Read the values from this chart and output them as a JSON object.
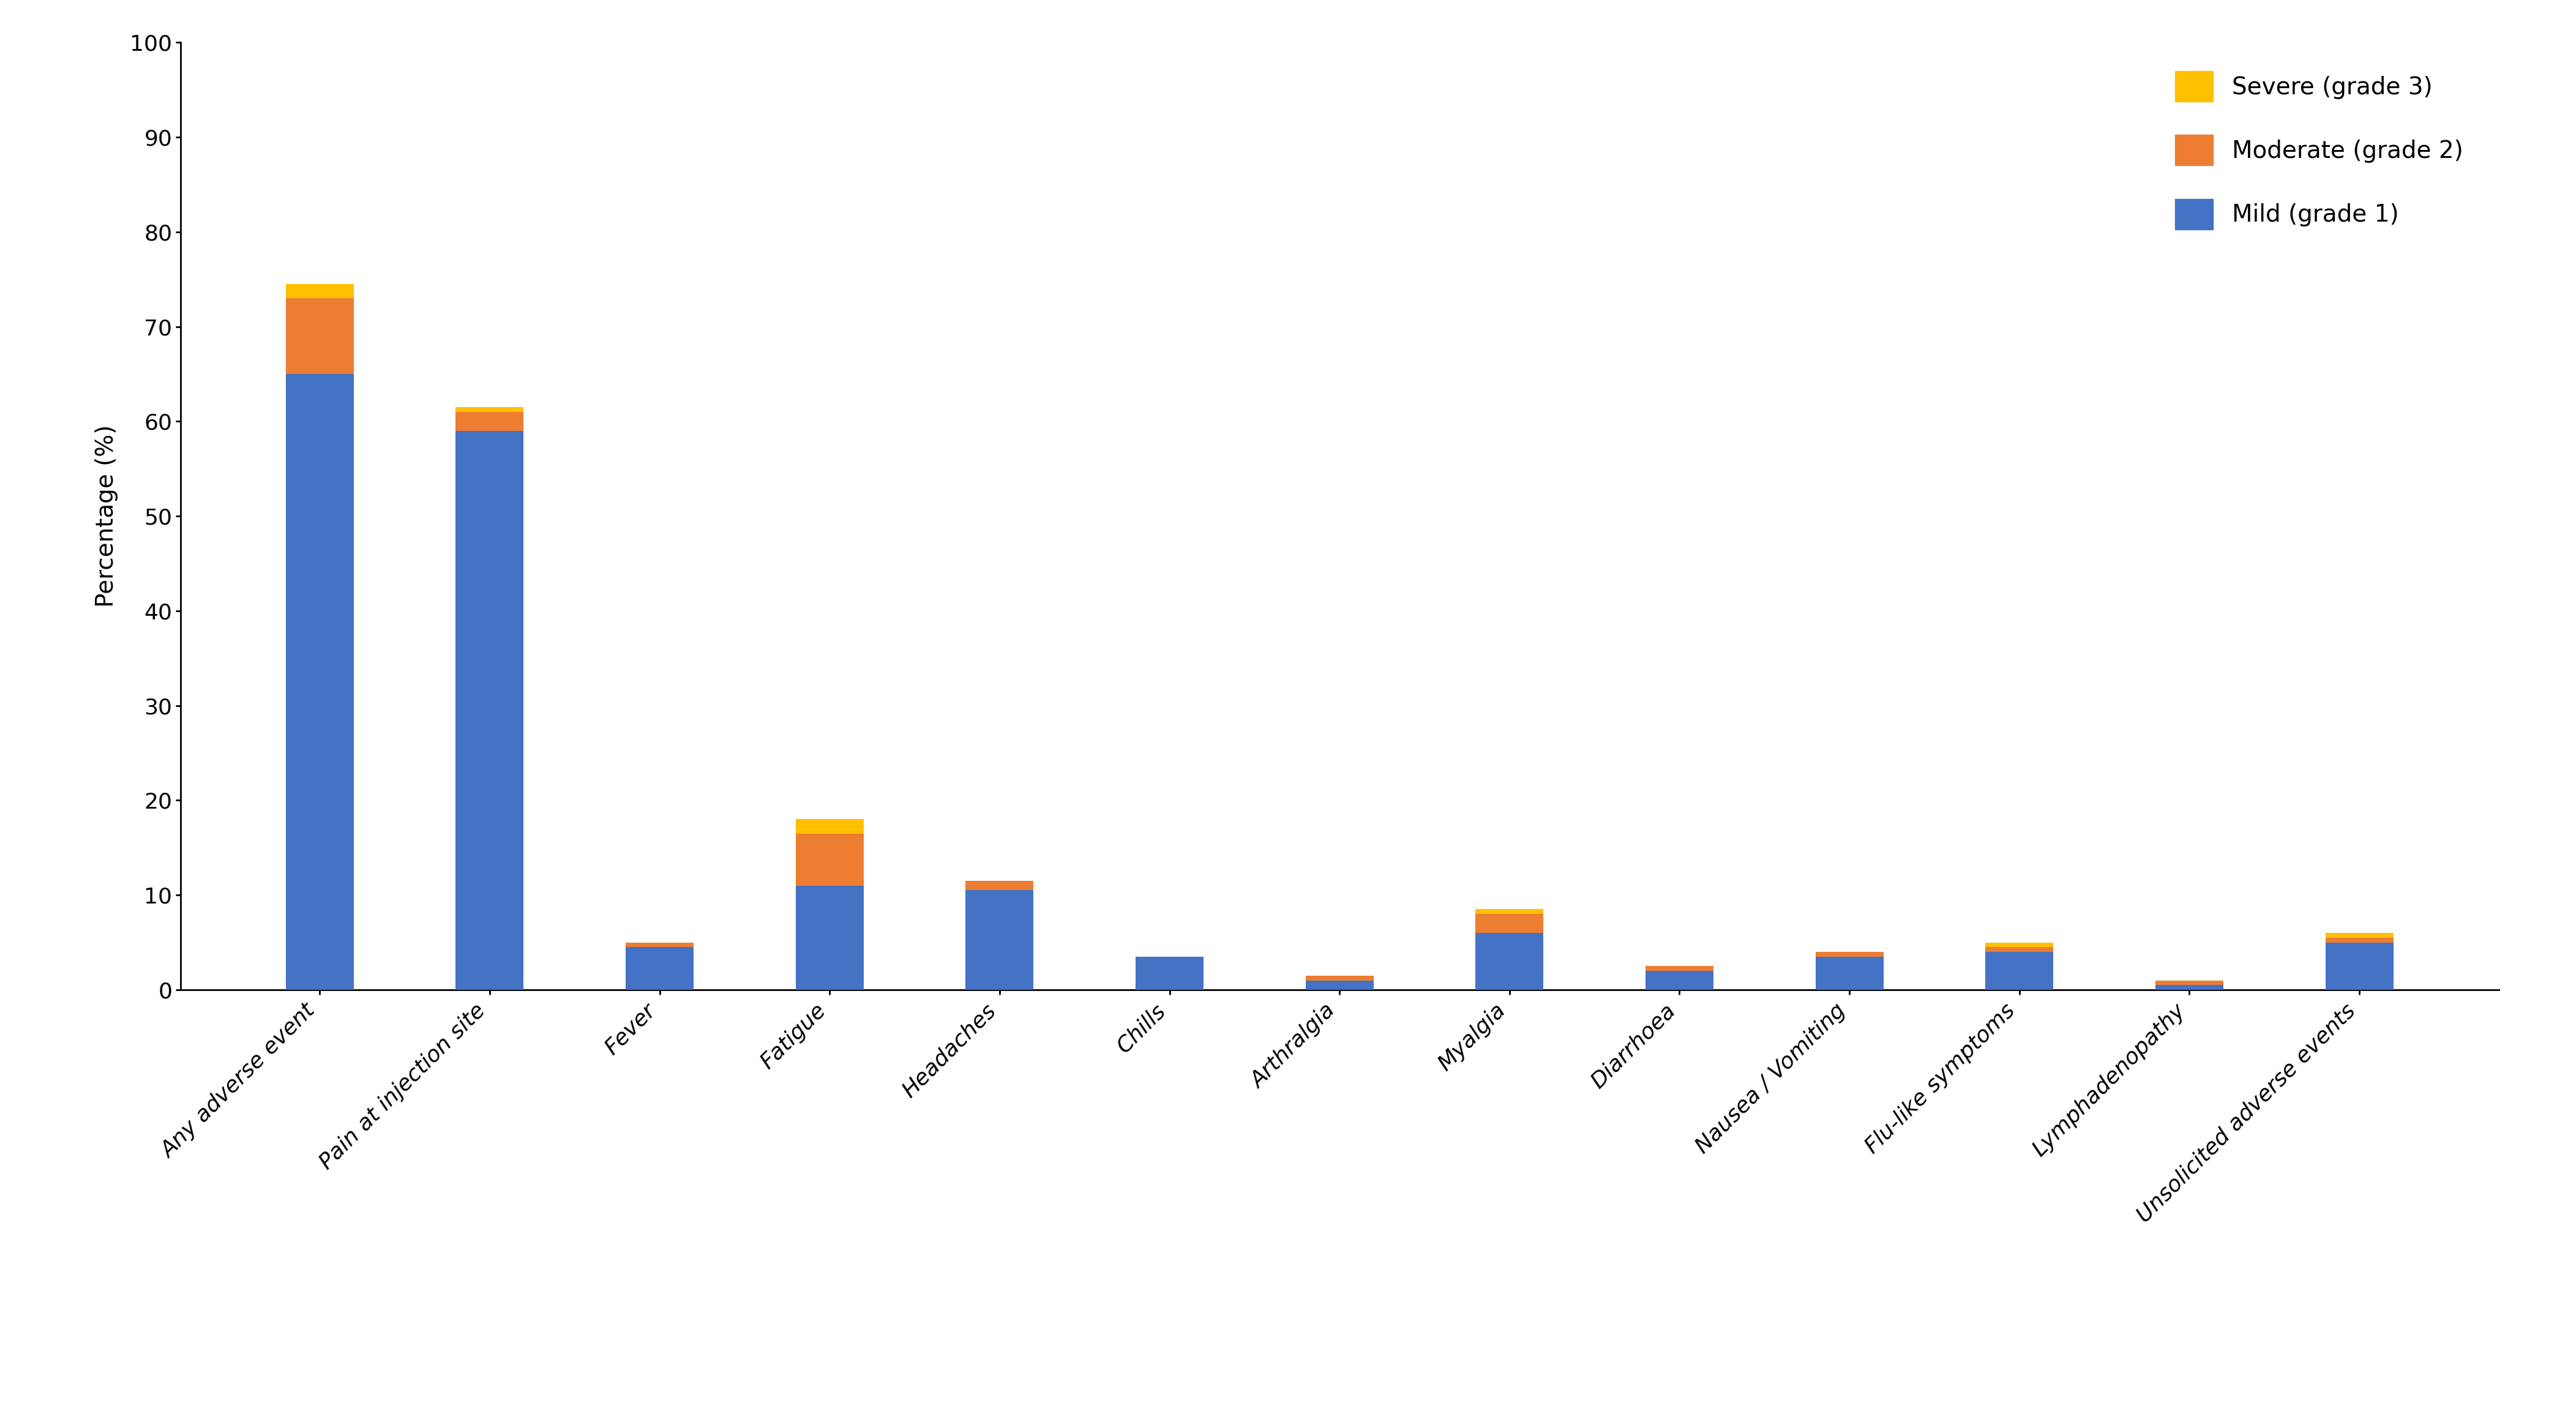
{
  "categories": [
    "Any adverse event",
    "Pain at injection site",
    "Fever",
    "Fatigue",
    "Headaches",
    "Chills",
    "Arthralgia",
    "Myalgia",
    "Diarrhoea",
    "Nausea / Vomiting",
    "Flu-like symptoms",
    "Lymphadenopathy",
    "Unsolicited adverse events"
  ],
  "mild": [
    65,
    59,
    4.5,
    11,
    10.5,
    3.5,
    1.0,
    6.0,
    2.0,
    3.5,
    4.0,
    0.5,
    5.0
  ],
  "moderate": [
    8.0,
    2.0,
    0.5,
    5.5,
    1.0,
    0.0,
    0.5,
    2.0,
    0.5,
    0.5,
    0.5,
    0.5,
    0.5
  ],
  "severe": [
    1.5,
    0.5,
    0.0,
    1.5,
    0.0,
    0.0,
    0.0,
    0.5,
    0.0,
    0.0,
    0.5,
    0.0,
    0.5
  ],
  "mild_color": "#4472C4",
  "moderate_color": "#ED7D31",
  "severe_color": "#FFC000",
  "ylabel": "Percentage (%)",
  "ylim": [
    0,
    100
  ],
  "yticks": [
    0,
    10,
    20,
    30,
    40,
    50,
    60,
    70,
    80,
    90,
    100
  ],
  "legend_labels": [
    "Severe (grade 3)",
    "Moderate (grade 2)",
    "Mild (grade 1)"
  ],
  "background_color": "#FFFFFF",
  "bar_width": 0.4,
  "axis_fontsize": 28,
  "tick_fontsize": 26,
  "legend_fontsize": 28
}
